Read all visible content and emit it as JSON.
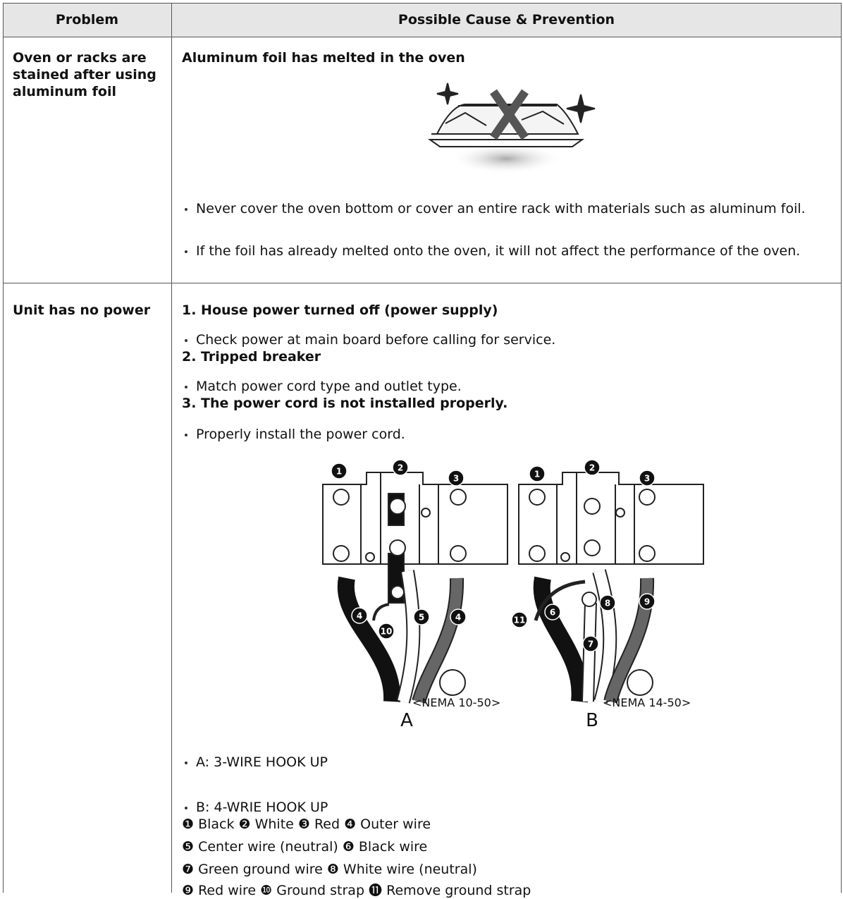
{
  "table": {
    "headers": [
      "Problem",
      "Possible Cause & Prevention"
    ],
    "rows": [
      {
        "problem": "Oven or racks are stained after using aluminum foil",
        "cause": "Aluminum foil has melted in the oven",
        "bullets": [
          "Never cover the oven bottom or cover an entire rack with materials such as aluminum foil.",
          "If the foil has already melted onto the oven, it will not affect the performance of the oven."
        ]
      },
      {
        "problem": "Unit has no power",
        "steps": [
          {
            "cause": "1. House power turned off (power supply)",
            "bullet": "Check power at main board before calling for service."
          },
          {
            "cause": "2. Tripped breaker",
            "bullet": "Match power cord type and outlet type."
          },
          {
            "cause": "3. The power cord is not installed properly.",
            "bullet": "Properly install the power cord."
          }
        ],
        "diagrams": [
          {
            "callouts": [
              "1",
              "2",
              "3",
              "4",
              "10",
              "5",
              "4"
            ],
            "outlet": "<NEMA 10-50>",
            "label": "A"
          },
          {
            "callouts": [
              "1",
              "2",
              "3",
              "11",
              "6",
              "8",
              "9",
              "7"
            ],
            "outlet": "<NEMA 14-50>",
            "label": "B"
          }
        ],
        "bullets": [
          "A: 3-WIRE HOOK UP",
          "B: 4-WRIE HOOK UP"
        ],
        "legend": [
          "❶ Black ❷ White ❸ Red ❹ Outer wire",
          "❺ Center wire (neutral) ❻ Black wire",
          "❼ Green ground wire ❽ White wire (neutral)",
          "❾ Red wire ❿ Ground strap ⓫ Remove ground strap"
        ]
      }
    ]
  }
}
